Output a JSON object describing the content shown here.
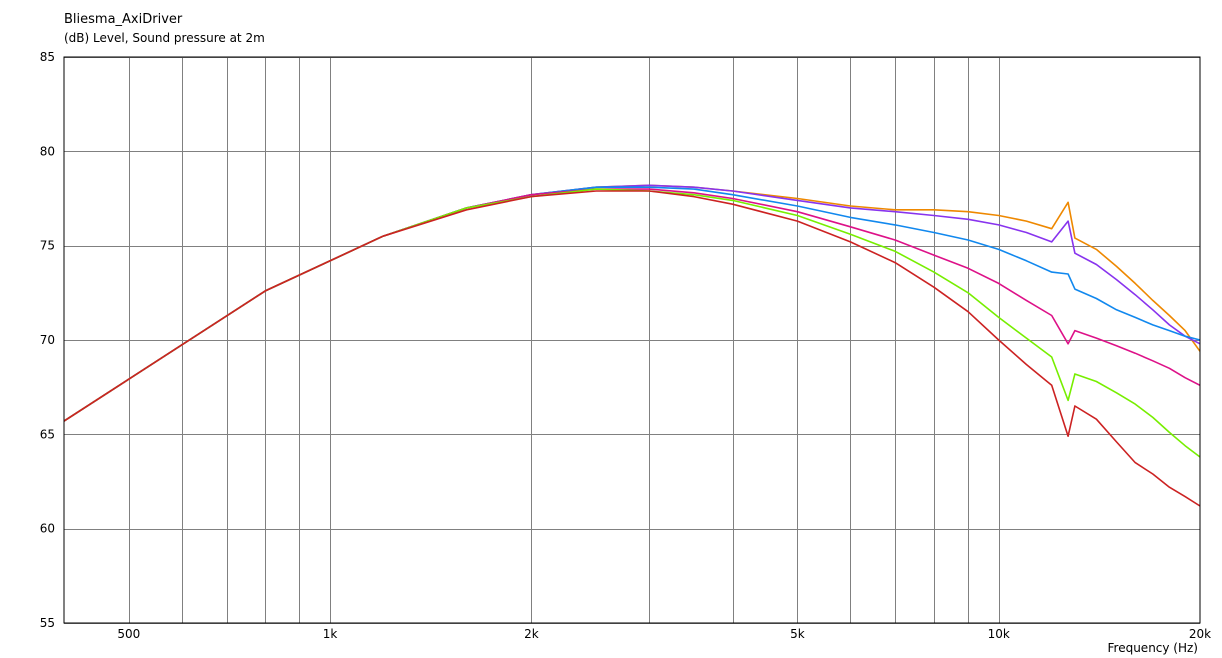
{
  "chart_data": {
    "type": "line",
    "title": "Bliesma_AxiDriver",
    "ylabel": "(dB)  Level, Sound pressure at 2m",
    "xlabel": "Frequency  (Hz)",
    "xscale": "log",
    "xlim": [
      400,
      20000
    ],
    "ylim": [
      55,
      85
    ],
    "grid": true,
    "x_ticks": [
      {
        "value": 500,
        "label": "500"
      },
      {
        "value": 1000,
        "label": "1k"
      },
      {
        "value": 2000,
        "label": "2k"
      },
      {
        "value": 5000,
        "label": "5k"
      },
      {
        "value": 10000,
        "label": "10k"
      },
      {
        "value": 20000,
        "label": "20k"
      }
    ],
    "y_ticks": [
      {
        "value": 85,
        "label": "85"
      },
      {
        "value": 80,
        "label": "80"
      },
      {
        "value": 75,
        "label": "75"
      },
      {
        "value": 70,
        "label": "70"
      },
      {
        "value": 65,
        "label": "65"
      },
      {
        "value": 60,
        "label": "60"
      },
      {
        "value": 55,
        "label": "55"
      }
    ],
    "minor_gridlines_hz": [
      600,
      700,
      800,
      900,
      3000,
      4000,
      6000,
      7000,
      8000,
      9000
    ],
    "series": [
      {
        "color": "#ee8800",
        "x": [
          400,
          800,
          1200,
          1600,
          2000,
          2500,
          3000,
          3500,
          4000,
          5000,
          6000,
          7000,
          8000,
          9000,
          10000,
          11000,
          12000,
          12700,
          13000,
          14000,
          15000,
          16000,
          17000,
          18000,
          19000,
          20000
        ],
        "y": [
          65.7,
          72.6,
          75.5,
          77.0,
          77.7,
          78.1,
          78.2,
          78.1,
          77.9,
          77.5,
          77.1,
          76.9,
          76.9,
          76.8,
          76.6,
          76.3,
          75.9,
          77.3,
          75.4,
          74.8,
          73.9,
          73.0,
          72.1,
          71.3,
          70.5,
          69.4
        ]
      },
      {
        "color": "#8833ee",
        "x": [
          400,
          800,
          1200,
          1600,
          2000,
          2500,
          3000,
          3500,
          4000,
          5000,
          6000,
          7000,
          8000,
          9000,
          10000,
          11000,
          12000,
          12700,
          13000,
          14000,
          15000,
          16000,
          17000,
          18000,
          19000,
          20000
        ],
        "y": [
          65.7,
          72.6,
          75.5,
          77.0,
          77.7,
          78.1,
          78.2,
          78.1,
          77.9,
          77.4,
          77.0,
          76.8,
          76.6,
          76.4,
          76.1,
          75.7,
          75.2,
          76.3,
          74.6,
          74.0,
          73.2,
          72.4,
          71.6,
          70.8,
          70.2,
          69.8
        ]
      },
      {
        "color": "#1188ee",
        "x": [
          400,
          800,
          1200,
          1600,
          2000,
          2500,
          3000,
          3500,
          4000,
          5000,
          6000,
          7000,
          8000,
          9000,
          10000,
          11000,
          12000,
          12700,
          13000,
          14000,
          15000,
          16000,
          17000,
          18000,
          19000,
          20000
        ],
        "y": [
          65.7,
          72.6,
          75.5,
          77.0,
          77.7,
          78.1,
          78.1,
          78.0,
          77.7,
          77.1,
          76.5,
          76.1,
          75.7,
          75.3,
          74.8,
          74.2,
          73.6,
          73.5,
          72.7,
          72.2,
          71.6,
          71.2,
          70.8,
          70.5,
          70.2,
          70.0
        ]
      },
      {
        "color": "#dd1188",
        "x": [
          400,
          800,
          1200,
          1600,
          2000,
          2500,
          3000,
          3500,
          4000,
          5000,
          6000,
          7000,
          8000,
          9000,
          10000,
          11000,
          12000,
          12700,
          13000,
          14000,
          15000,
          16000,
          17000,
          18000,
          19000,
          20000
        ],
        "y": [
          65.7,
          72.6,
          75.5,
          77.0,
          77.7,
          78.0,
          78.0,
          77.8,
          77.5,
          76.8,
          76.0,
          75.3,
          74.5,
          73.8,
          73.0,
          72.1,
          71.3,
          69.8,
          70.5,
          70.1,
          69.7,
          69.3,
          68.9,
          68.5,
          68.0,
          67.6
        ]
      },
      {
        "color": "#77ee00",
        "x": [
          400,
          800,
          1200,
          1600,
          2000,
          2500,
          3000,
          3500,
          4000,
          5000,
          6000,
          7000,
          8000,
          9000,
          10000,
          11000,
          12000,
          12700,
          13000,
          14000,
          15000,
          16000,
          17000,
          18000,
          19000,
          20000
        ],
        "y": [
          65.7,
          72.6,
          75.5,
          77.0,
          77.6,
          78.0,
          77.9,
          77.7,
          77.4,
          76.6,
          75.6,
          74.7,
          73.6,
          72.5,
          71.2,
          70.1,
          69.1,
          66.8,
          68.2,
          67.8,
          67.2,
          66.6,
          65.9,
          65.1,
          64.4,
          63.8
        ]
      },
      {
        "color": "#cc2222",
        "x": [
          400,
          800,
          1200,
          1600,
          2000,
          2500,
          3000,
          3500,
          4000,
          5000,
          6000,
          7000,
          8000,
          9000,
          10000,
          11000,
          12000,
          12700,
          13000,
          14000,
          15000,
          16000,
          17000,
          18000,
          19000,
          20000
        ],
        "y": [
          65.7,
          72.6,
          75.5,
          76.9,
          77.6,
          77.9,
          77.9,
          77.6,
          77.2,
          76.3,
          75.2,
          74.1,
          72.8,
          71.5,
          70.0,
          68.7,
          67.6,
          64.9,
          66.5,
          65.8,
          64.6,
          63.5,
          62.9,
          62.2,
          61.7,
          61.2
        ]
      }
    ]
  }
}
